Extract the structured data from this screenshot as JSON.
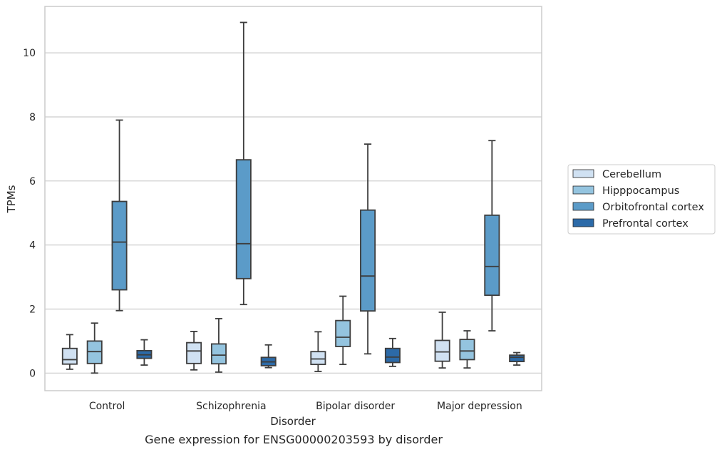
{
  "chart_data": {
    "type": "box",
    "title": "",
    "caption": "Gene expression for ENSG00000203593 by disorder",
    "xlabel": "Disorder",
    "ylabel": "TPMs",
    "ylim": [
      -0.55,
      11.45
    ],
    "yticks": [
      0,
      2,
      4,
      6,
      8,
      10
    ],
    "grid": "horizontal",
    "legend_placement": "center-right",
    "categories": [
      "Control",
      "Schizophrenia",
      "Bipolar disorder",
      "Major depression"
    ],
    "series": [
      {
        "name": "Cerebellum",
        "color": "#d0e1f2",
        "boxes": [
          {
            "min": 0.12,
            "q1": 0.28,
            "median": 0.42,
            "q3": 0.77,
            "max": 1.2
          },
          {
            "min": 0.1,
            "q1": 0.3,
            "median": 0.69,
            "q3": 0.95,
            "max": 1.3
          },
          {
            "min": 0.05,
            "q1": 0.27,
            "median": 0.44,
            "q3": 0.67,
            "max": 1.29
          },
          {
            "min": 0.16,
            "q1": 0.37,
            "median": 0.66,
            "q3": 1.02,
            "max": 1.9
          }
        ]
      },
      {
        "name": "Hipppocampus",
        "color": "#94c4df",
        "boxes": [
          {
            "min": 0.0,
            "q1": 0.3,
            "median": 0.67,
            "q3": 1.0,
            "max": 1.56
          },
          {
            "min": 0.03,
            "q1": 0.29,
            "median": 0.56,
            "q3": 0.91,
            "max": 1.7
          },
          {
            "min": 0.27,
            "q1": 0.83,
            "median": 1.12,
            "q3": 1.64,
            "max": 2.4
          },
          {
            "min": 0.16,
            "q1": 0.42,
            "median": 0.69,
            "q3": 1.05,
            "max": 1.32
          }
        ]
      },
      {
        "name": "Orbitofrontal cortex",
        "color": "#5b9bc8",
        "boxes": [
          {
            "min": 1.95,
            "q1": 2.6,
            "median": 4.09,
            "q3": 5.36,
            "max": 7.9
          },
          {
            "min": 2.14,
            "q1": 2.95,
            "median": 4.04,
            "q3": 6.66,
            "max": 10.95
          },
          {
            "min": 0.6,
            "q1": 1.94,
            "median": 3.03,
            "q3": 5.09,
            "max": 7.15
          },
          {
            "min": 1.32,
            "q1": 2.43,
            "median": 3.33,
            "q3": 4.93,
            "max": 7.26
          }
        ]
      },
      {
        "name": "Prefrontal cortex",
        "color": "#2c6aa8",
        "boxes": [
          {
            "min": 0.25,
            "q1": 0.46,
            "median": 0.57,
            "q3": 0.7,
            "max": 1.04
          },
          {
            "min": 0.17,
            "q1": 0.23,
            "median": 0.35,
            "q3": 0.49,
            "max": 0.88
          },
          {
            "min": 0.21,
            "q1": 0.33,
            "median": 0.5,
            "q3": 0.77,
            "max": 1.08
          },
          {
            "min": 0.25,
            "q1": 0.36,
            "median": 0.49,
            "q3": 0.56,
            "max": 0.64
          }
        ]
      }
    ]
  }
}
